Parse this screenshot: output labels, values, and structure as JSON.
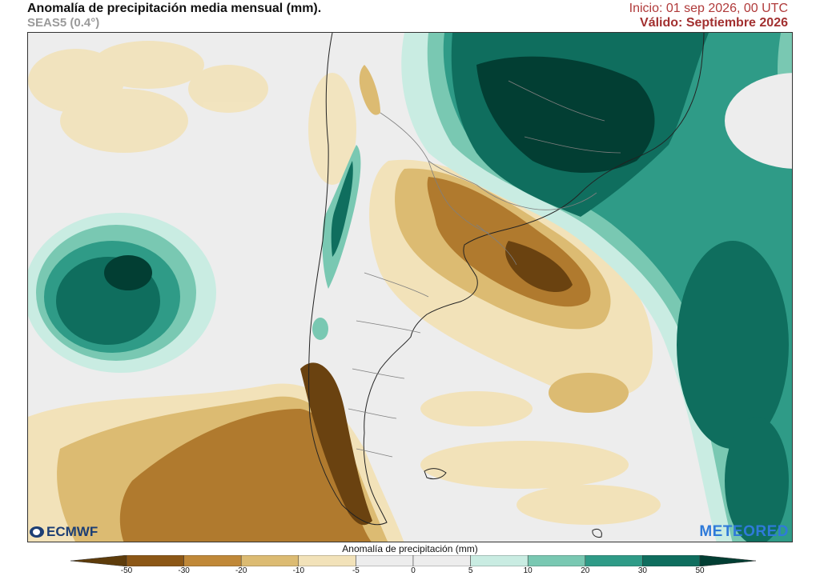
{
  "header": {
    "title": "Anomalía de precipitación media mensual (mm).",
    "subtitle": "SEAS5 (0.4°)",
    "init": "Inicio: 01 sep 2026, 00 UTC",
    "valid": "Válido: Septiembre 2026"
  },
  "logos": {
    "left": "ECMWF",
    "right": "METEORED"
  },
  "legend": {
    "title": "Anomalía de precipitación (mm)",
    "ticks": [
      "-50",
      "-30",
      "-20",
      "-10",
      "-5",
      "0",
      "5",
      "10",
      "20",
      "30",
      "50"
    ],
    "colors": [
      "#5e3c0b",
      "#8c5716",
      "#c08838",
      "#dcbb72",
      "#f2e2b9",
      "#ededed",
      "#ededed",
      "#c9ece2",
      "#79c8b2",
      "#2f9b87",
      "#0f6e5e",
      "#023e33"
    ]
  },
  "map_colors": {
    "dry_dark": "#6a4210",
    "dry": "#b07a2e",
    "dry_light": "#dcbb72",
    "dry_pale": "#f2e2b9",
    "neutral": "#ededed",
    "wet_pale": "#c9ece2",
    "wet_light": "#79c8b2",
    "wet": "#2f9b87",
    "wet_dark": "#0f6e5e",
    "wet_deep": "#023e33",
    "land_border": "#7f7f7f",
    "coast": "#222222"
  }
}
